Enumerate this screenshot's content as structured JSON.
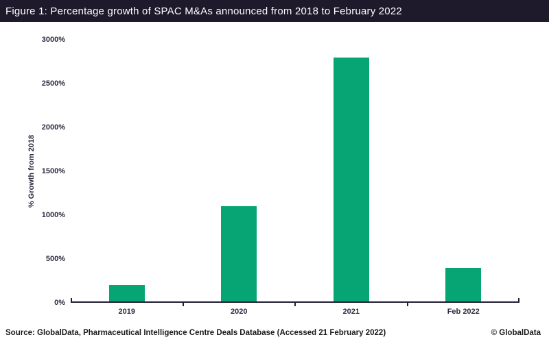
{
  "header": {
    "title": "Figure 1: Percentage growth of SPAC M&As announced from 2018 to February 2022",
    "bg_color": "#1E1A2B",
    "text_color": "#FFFFFF"
  },
  "footer": {
    "source": "Source: GlobalData, Pharmaceutical Intelligence Centre Deals Database (Accessed 21 February 2022)",
    "copyright": "© GlobalData"
  },
  "chart_data": {
    "type": "bar",
    "title": "Figure 1: Percentage growth of SPAC M&As announced from 2018 to February 2022",
    "categories": [
      "2019",
      "2020",
      "2021",
      "Feb 2022"
    ],
    "values": [
      200,
      1100,
      2800,
      400
    ],
    "xlabel": "",
    "ylabel": "% Growth from 2018",
    "ylim": [
      0,
      3000
    ],
    "ytick_step": 500,
    "ytick_labels": [
      "0%",
      "500%",
      "1000%",
      "1500%",
      "2000%",
      "2500%",
      "3000%"
    ],
    "grid": false,
    "legend": "none",
    "bar_color": "#06A573",
    "axis_color": "#1F1E33",
    "label_color": "#2C2A3E"
  }
}
